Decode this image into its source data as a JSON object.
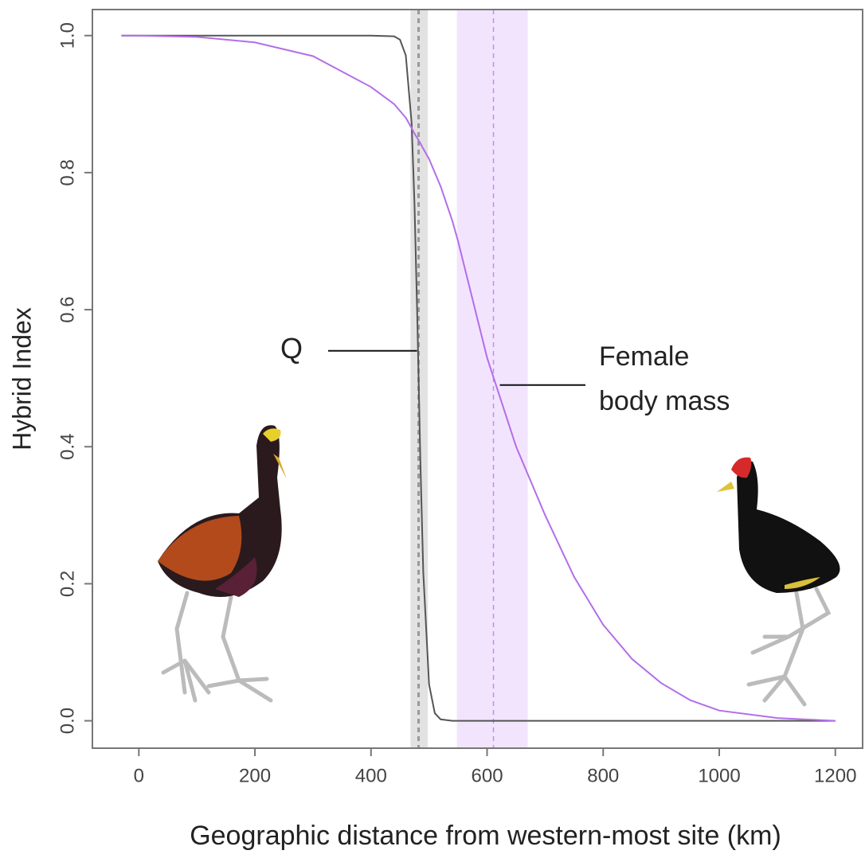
{
  "chart_data": {
    "type": "line",
    "x_label": "Geographic distance from western-most site (km)",
    "y_label": "Hybrid Index",
    "x": [
      -30,
      0,
      100,
      200,
      300,
      400,
      440,
      450,
      460,
      470,
      475,
      480,
      485,
      490,
      500,
      510,
      520,
      540,
      550,
      600,
      650,
      700,
      750,
      800,
      850,
      900,
      950,
      1000,
      1100,
      1200
    ],
    "series": [
      {
        "color": "#555555",
        "values": [
          1,
          1,
          1,
          1,
          1,
          1,
          0.999,
          0.994,
          0.971,
          0.872,
          0.754,
          0.579,
          0.382,
          0.217,
          0.053,
          0.011,
          0.002,
          0,
          0,
          0,
          0,
          0,
          0,
          0,
          0,
          0,
          0,
          0,
          0,
          0
        ]
      },
      {
        "color": "#b36ee8",
        "values": [
          1,
          1,
          0.998,
          0.99,
          0.97,
          0.925,
          0.9,
          0.89,
          0.88,
          0.865,
          0.857,
          0.85,
          0.843,
          0.835,
          0.82,
          0.8,
          0.78,
          0.73,
          0.7,
          0.53,
          0.4,
          0.3,
          0.21,
          0.14,
          0.09,
          0.055,
          0.03,
          0.015,
          0.004,
          0
        ]
      }
    ],
    "bands": [
      {
        "center": 482,
        "lower": 468,
        "upper": 498,
        "color": "#e2e2e2",
        "line_color": "#999999"
      },
      {
        "center": 611,
        "lower": 548,
        "upper": 670,
        "color": "#f2e4fd",
        "line_color": "#c48cf0"
      }
    ],
    "annotations": [
      {
        "text": "Q",
        "x": 482,
        "y": 0.54
      },
      {
        "text": [
          "Female",
          "body mass"
        ],
        "x": 611,
        "y": 0.49
      }
    ],
    "xlim": [
      -80,
      1247
    ],
    "ylim": [
      -0.04,
      1.038
    ],
    "xticks": [
      0,
      200,
      400,
      600,
      800,
      1000,
      1200
    ],
    "yticks": [
      {
        "value": 0,
        "label": "0.0"
      },
      0.2,
      0.4,
      0.6,
      0.8,
      {
        "value": 1,
        "label": "1.0"
      }
    ]
  }
}
